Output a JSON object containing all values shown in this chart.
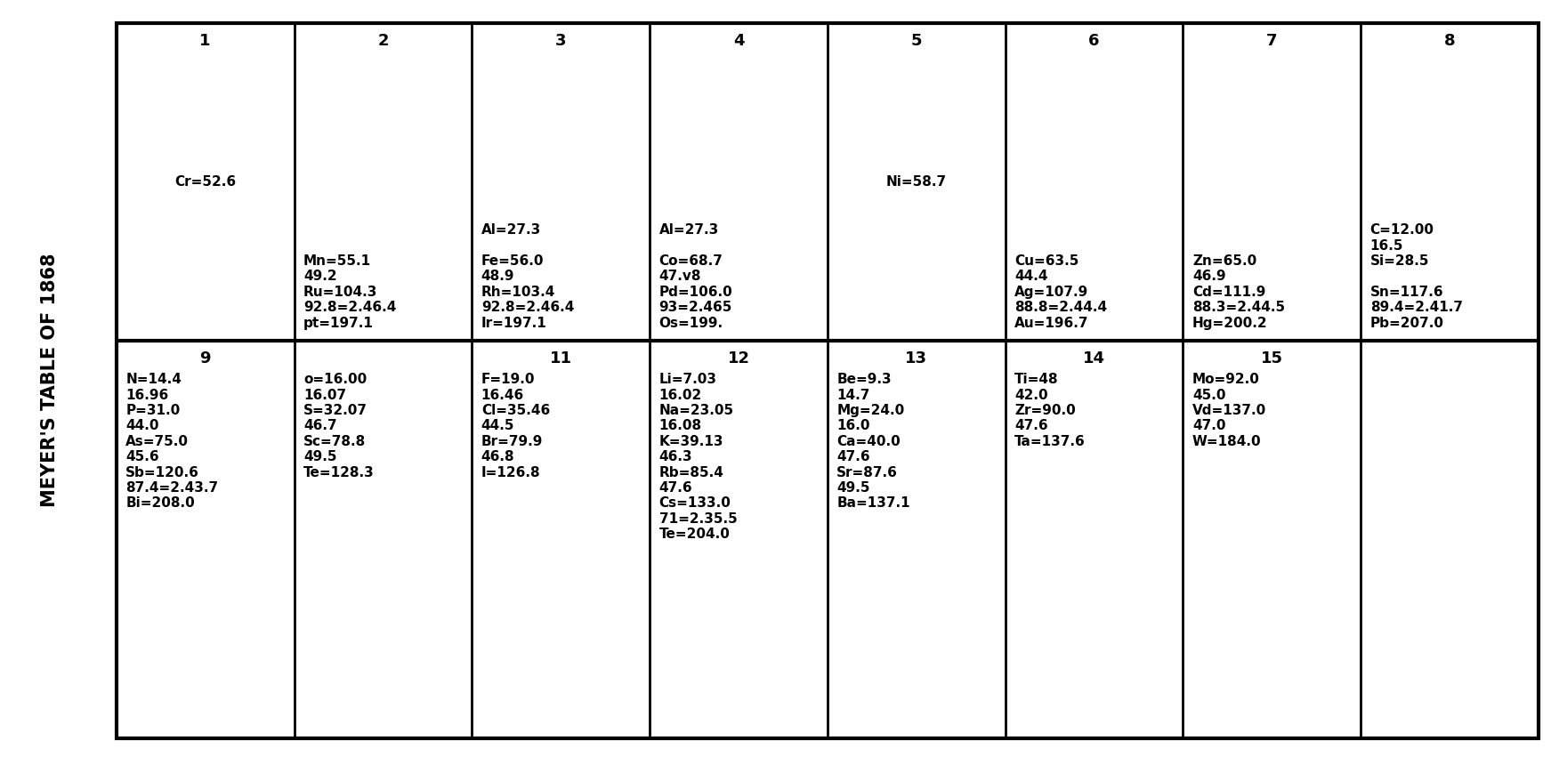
{
  "title": "MEYER'S TABLE OF 1868",
  "figsize": [
    17.43,
    8.51
  ],
  "dpi": 100,
  "background": "#ffffff",
  "border_color": "#000000",
  "col_headers_row1": [
    "1",
    "2",
    "3",
    "4",
    "5",
    "6",
    "7",
    "8"
  ],
  "col_headers_row2": [
    "9",
    "",
    "11",
    "12",
    "13",
    "14",
    "15",
    ""
  ],
  "row1_contents": [
    "Cr=52.6",
    "Mn=55.1\n49.2\nRu=104.3\n92.8=2.46.4\npt=197.1",
    "Al=27.3\n\nFe=56.0\n48.9\nRh=103.4\n92.8=2.46.4\nIr=197.1",
    "Al=27.3\n\nCo=68.7\n47.v8\nPd=106.0\n93=2.465\nOs=199.",
    "Ni=58.7",
    "Cu=63.5\n44.4\nAg=107.9\n88.8=2.44.4\nAu=196.7",
    "Zn=65.0\n46.9\nCd=111.9\n88.3=2.44.5\nHg=200.2",
    "C=12.00\n16.5\nSi=28.5\n\nSn=117.6\n89.4=2.41.7\nPb=207.0"
  ],
  "row2_contents": [
    "N=14.4\n16.96\nP=31.0\n44.0\nAs=75.0\n45.6\nSb=120.6\n87.4=2.43.7\nBi=208.0",
    "o=16.00\n16.07\nS=32.07\n46.7\nSc=78.8\n49.5\nTe=128.3",
    "F=19.0\n16.46\nCl=35.46\n44.5\nBr=79.9\n46.8\nI=126.8",
    "Li=7.03\n16.02\nNa=23.05\n16.08\nK=39.13\n46.3\nRb=85.4\n47.6\nCs=133.0\n71=2.35.5\nTe=204.0",
    "Be=9.3\n14.7\nMg=24.0\n16.0\nCa=40.0\n47.6\nSr=87.6\n49.5\nBa=137.1",
    "Ti=48\n42.0\nZr=90.0\n47.6\nTa=137.6",
    "Mo=92.0\n45.0\nVd=137.0\n47.0\nW=184.0",
    ""
  ],
  "row1_centered": [
    0,
    4
  ],
  "fontsize_header": 13,
  "fontsize_content": 11,
  "fontsize_title": 15
}
